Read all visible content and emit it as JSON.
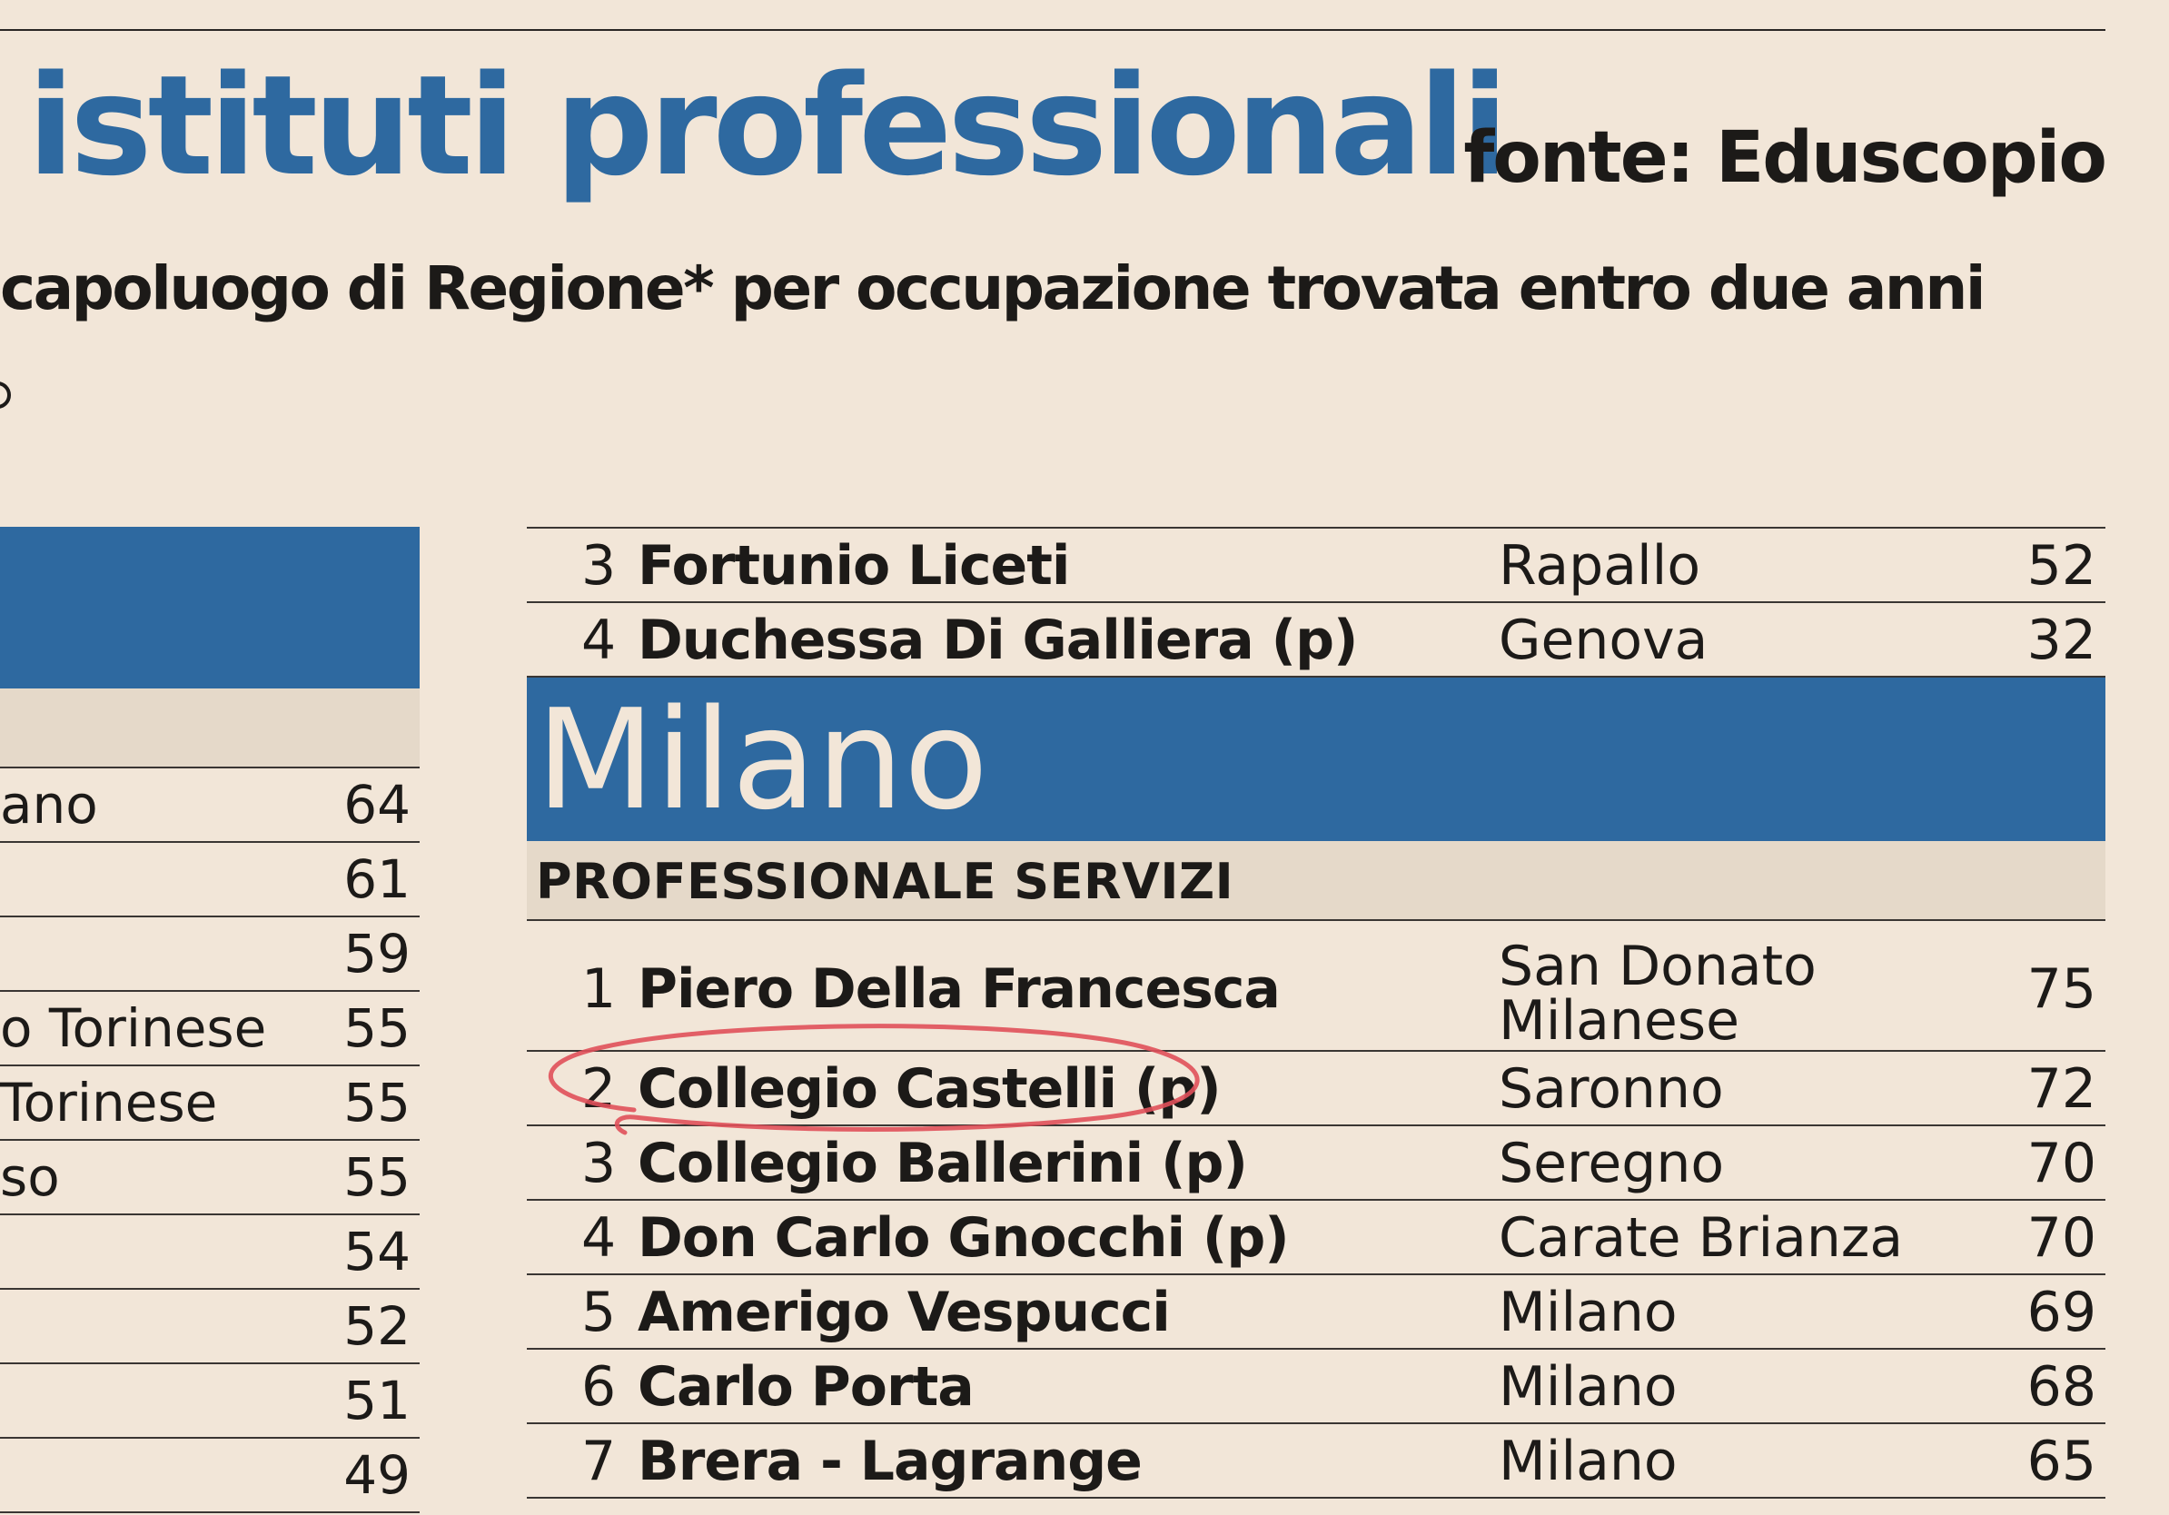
{
  "header": {
    "title": "istituti professionali",
    "source": "fonte: Eduscopio",
    "subtitle": "capoluogo di Regione* per occupazione trovata entro due anni"
  },
  "colors": {
    "accent_blue": "#2e69a0",
    "background": "#f2e6d8",
    "section_band": "#e5d9c9",
    "annotation_red": "#e0505a"
  },
  "left_table": {
    "rows": [
      {
        "text": "ano",
        "value": "64"
      },
      {
        "text": "",
        "value": "61"
      },
      {
        "text": "",
        "value": "59"
      },
      {
        "text": "o Torinese",
        "value": "55"
      },
      {
        "text": "Torinese",
        "value": "55"
      },
      {
        "text": "so",
        "value": "55"
      },
      {
        "text": "",
        "value": "54"
      },
      {
        "text": "",
        "value": "52"
      },
      {
        "text": "",
        "value": "51"
      },
      {
        "text": "",
        "value": "49"
      }
    ]
  },
  "right_table": {
    "prev_rows": [
      {
        "rank": "3",
        "name": "Fortunio Liceti",
        "city": "Rapallo",
        "value": "52"
      },
      {
        "rank": "4",
        "name": "Duchessa Di Galliera (p)",
        "city": "Genova",
        "value": "32"
      }
    ],
    "region": "Milano",
    "section": "PROFESSIONALE SERVIZI",
    "rows": [
      {
        "rank": "1",
        "name": "Piero Della Francesca",
        "city": "San Donato Milanese",
        "value": "75"
      },
      {
        "rank": "2",
        "name": "Collegio Castelli (p)",
        "city": "Saronno",
        "value": "72"
      },
      {
        "rank": "3",
        "name": "Collegio Ballerini (p)",
        "city": "Seregno",
        "value": "70"
      },
      {
        "rank": "4",
        "name": "Don Carlo Gnocchi (p)",
        "city": "Carate Brianza",
        "value": "70"
      },
      {
        "rank": "5",
        "name": "Amerigo Vespucci",
        "city": "Milano",
        "value": "69"
      },
      {
        "rank": "6",
        "name": "Carlo Porta",
        "city": "Milano",
        "value": "68"
      },
      {
        "rank": "7",
        "name": "Brera - Lagrange",
        "city": "Milano",
        "value": "65"
      }
    ]
  }
}
